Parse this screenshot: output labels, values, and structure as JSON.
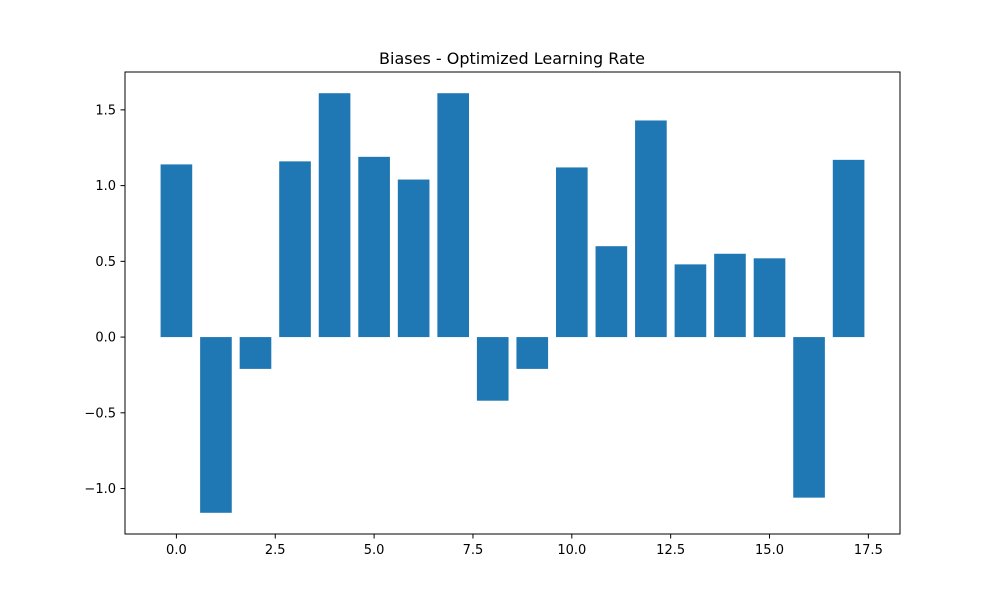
{
  "chart_data": {
    "type": "bar",
    "title": "Biases - Optimized Learning Rate",
    "xlabel": "",
    "ylabel": "",
    "x": [
      0,
      1,
      2,
      3,
      4,
      5,
      6,
      7,
      8,
      9,
      10,
      11,
      12,
      13,
      14,
      15,
      16,
      17
    ],
    "values": [
      1.14,
      -1.16,
      -0.21,
      1.16,
      1.61,
      1.19,
      1.04,
      1.61,
      -0.42,
      -0.21,
      1.12,
      0.6,
      1.43,
      0.48,
      0.55,
      0.52,
      -1.06,
      1.17
    ],
    "xlim": [
      -1.3,
      18.3
    ],
    "ylim": [
      -1.3,
      1.75
    ],
    "xticks": [
      0.0,
      2.5,
      5.0,
      7.5,
      10.0,
      12.5,
      15.0,
      17.5
    ],
    "xtick_labels": [
      "0.0",
      "2.5",
      "5.0",
      "7.5",
      "10.0",
      "12.5",
      "15.0",
      "17.5"
    ],
    "yticks": [
      -1.0,
      -0.5,
      0.0,
      0.5,
      1.0,
      1.5
    ],
    "ytick_labels": [
      "−1.0",
      "−0.5",
      "0.0",
      "0.5",
      "1.0",
      "1.5"
    ],
    "bar_color": "#1f77b4",
    "grid": false,
    "legend": "none"
  }
}
